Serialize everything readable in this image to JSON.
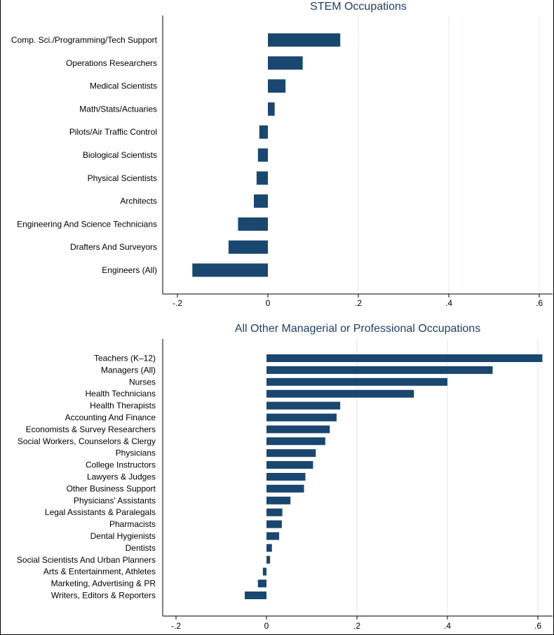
{
  "chart_data": [
    {
      "type": "bar",
      "orientation": "horizontal",
      "title": "STEM Occupations",
      "categories": [
        "Comp. Sci./Programming/Tech Support",
        "Operations Researchers",
        "Medical Scientists",
        "Math/Stats/Actuaries",
        "Pilots/Air Traffic Control",
        "Biological Scientists",
        "Physical Scientists",
        "Architects",
        "Engineering And Science Technicians",
        "Drafters And Surveyors",
        "Engineers (All)"
      ],
      "values": [
        0.16,
        0.077,
        0.039,
        0.015,
        -0.019,
        -0.022,
        -0.025,
        -0.031,
        -0.066,
        -0.087,
        -0.167
      ],
      "xlim": [
        -0.2,
        0.6
      ],
      "xticks": [
        -0.2,
        0,
        0.2,
        0.4,
        0.6
      ],
      "xtick_labels": [
        "-.2",
        "0",
        ".2",
        ".4",
        ".6"
      ],
      "grid": true,
      "bar_color": "#1a476f"
    },
    {
      "type": "bar",
      "orientation": "horizontal",
      "title": "All Other Managerial or Professional Occupations",
      "categories": [
        "Teachers (K–12)",
        "Managers (All)",
        "Nurses",
        "Health Technicians",
        "Health Therapists",
        "Accounting And Finance",
        "Economists & Survey Researchers",
        "Social Workers, Counselors & Clergy",
        "Physicians",
        "College Instructors",
        "Lawyers & Judges",
        "Other Business Support",
        "Physicians' Assistants",
        "Legal Assistants & Paralegals",
        "Pharmacists",
        "Dental Hygienists",
        "Dentists",
        "Social Scientists And Urban Planners",
        "Arts & Entertainment, Athletes",
        "Marketing, Advertising & PR",
        "Writers, Editors & Reporters"
      ],
      "values": [
        0.61,
        0.5,
        0.4,
        0.326,
        0.163,
        0.155,
        0.14,
        0.13,
        0.109,
        0.103,
        0.086,
        0.083,
        0.053,
        0.035,
        0.034,
        0.028,
        0.012,
        0.008,
        -0.008,
        -0.019,
        -0.048
      ],
      "xlim": [
        -0.2,
        0.6
      ],
      "xticks": [
        -0.2,
        0,
        0.2,
        0.4,
        0.6
      ],
      "xtick_labels": [
        "-.2",
        "0",
        ".2",
        ".4",
        ".6"
      ],
      "grid": true,
      "bar_color": "#1a476f"
    }
  ]
}
